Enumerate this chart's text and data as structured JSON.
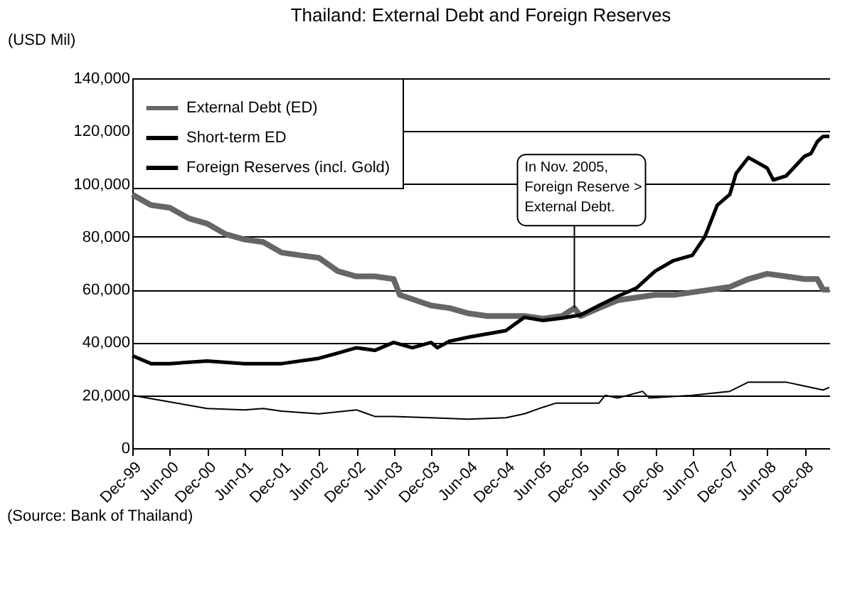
{
  "chart_data": {
    "type": "line",
    "title": "Thailand: External Debt and Foreign Reserves",
    "ylabel": "(USD Mil)",
    "series": [
      {
        "name": "External Debt (ED)",
        "color": "#666666",
        "x": [
          "1999-12",
          "2000-03",
          "2000-06",
          "2000-09",
          "2000-12",
          "2001-03",
          "2001-06",
          "2001-09",
          "2001-12",
          "2002-03",
          "2002-06",
          "2002-09",
          "2002-12",
          "2003-03",
          "2003-06",
          "2003-07",
          "2003-12",
          "2004-03",
          "2004-06",
          "2004-09",
          "2004-12",
          "2005-03",
          "2005-06",
          "2005-09",
          "2005-11",
          "2005-12",
          "2006-03",
          "2006-06",
          "2006-09",
          "2006-12",
          "2007-03",
          "2007-06",
          "2007-09",
          "2007-12",
          "2008-03",
          "2008-06",
          "2008-09",
          "2008-12",
          "2009-02",
          "2009-03",
          "2009-04"
        ],
        "values": [
          96000,
          92000,
          91000,
          87000,
          85000,
          81000,
          79000,
          78000,
          74000,
          73000,
          72000,
          67000,
          65000,
          65000,
          64000,
          58000,
          54000,
          53000,
          51000,
          50000,
          50000,
          50000,
          49000,
          50000,
          53000,
          50000,
          53000,
          56000,
          57000,
          58000,
          58000,
          59000,
          60000,
          61000,
          64000,
          66000,
          65000,
          64000,
          64000,
          60000,
          60000
        ]
      },
      {
        "name": "Short-term ED",
        "color": "#000000",
        "x": [
          "1999-12",
          "2000-06",
          "2000-12",
          "2001-06",
          "2001-09",
          "2001-12",
          "2002-06",
          "2002-12",
          "2003-03",
          "2003-06",
          "2003-12",
          "2004-06",
          "2004-12",
          "2005-03",
          "2005-06",
          "2005-08",
          "2005-12",
          "2006-03",
          "2006-04",
          "2006-06",
          "2006-10",
          "2006-11",
          "2007-06",
          "2007-12",
          "2008-03",
          "2008-06",
          "2008-09",
          "2008-12",
          "2009-03",
          "2009-04"
        ],
        "values": [
          20000,
          17500,
          15000,
          14500,
          15000,
          14000,
          13000,
          14500,
          12000,
          12000,
          11500,
          11000,
          11500,
          13000,
          15500,
          17000,
          17000,
          17000,
          20000,
          19000,
          21500,
          19000,
          20000,
          21500,
          25000,
          25000,
          25000,
          23500,
          22000,
          23000
        ]
      },
      {
        "name": "Foreign Reserves (incl. Gold)",
        "color": "#000000",
        "x": [
          "1999-12",
          "2000-03",
          "2000-06",
          "2000-12",
          "2001-06",
          "2001-12",
          "2002-06",
          "2002-09",
          "2002-12",
          "2003-03",
          "2003-06",
          "2003-09",
          "2003-12",
          "2004-01",
          "2004-03",
          "2004-06",
          "2004-12",
          "2005-03",
          "2005-06",
          "2005-09",
          "2005-12",
          "2006-03",
          "2006-06",
          "2006-09",
          "2006-12",
          "2007-03",
          "2007-06",
          "2007-08",
          "2007-10",
          "2007-12",
          "2008-01",
          "2008-03",
          "2008-06",
          "2008-07",
          "2008-09",
          "2008-12",
          "2009-01",
          "2009-02",
          "2009-03",
          "2009-04"
        ],
        "values": [
          35000,
          32000,
          32000,
          33000,
          32000,
          32000,
          34000,
          36000,
          38000,
          37000,
          40000,
          38000,
          40000,
          38000,
          40500,
          42000,
          44500,
          49500,
          48300,
          49200,
          50400,
          54000,
          57500,
          60600,
          67000,
          71000,
          73000,
          80000,
          92000,
          96000,
          104000,
          110000,
          106000,
          101500,
          103000,
          110500,
          111500,
          116000,
          118000,
          118000
        ]
      }
    ],
    "xlim": [
      "1999-12",
      "2009-04"
    ],
    "xticks": [
      {
        "value": "1999-12",
        "label": "Dec-99"
      },
      {
        "value": "2000-06",
        "label": "Jun-00"
      },
      {
        "value": "2000-12",
        "label": "Dec-00"
      },
      {
        "value": "2001-06",
        "label": "Jun-01"
      },
      {
        "value": "2001-12",
        "label": "Dec-01"
      },
      {
        "value": "2002-06",
        "label": "Jun-02"
      },
      {
        "value": "2002-12",
        "label": "Dec-02"
      },
      {
        "value": "2003-06",
        "label": "Jun-03"
      },
      {
        "value": "2003-12",
        "label": "Dec-03"
      },
      {
        "value": "2004-06",
        "label": "Jun-04"
      },
      {
        "value": "2004-12",
        "label": "Dec-04"
      },
      {
        "value": "2005-06",
        "label": "Jun-05"
      },
      {
        "value": "2005-12",
        "label": "Dec-05"
      },
      {
        "value": "2006-06",
        "label": "Jun-06"
      },
      {
        "value": "2006-12",
        "label": "Dec-06"
      },
      {
        "value": "2007-06",
        "label": "Jun-07"
      },
      {
        "value": "2007-12",
        "label": "Dec-07"
      },
      {
        "value": "2008-06",
        "label": "Jun-08"
      },
      {
        "value": "2008-12",
        "label": "Dec-08"
      }
    ],
    "ylim": [
      0,
      140000
    ],
    "yticks": [
      {
        "value": 0,
        "label": "0"
      },
      {
        "value": 20000,
        "label": "20,000"
      },
      {
        "value": 40000,
        "label": "40,000"
      },
      {
        "value": 60000,
        "label": "60,000"
      },
      {
        "value": 80000,
        "label": "80,000"
      },
      {
        "value": 100000,
        "label": "100,000"
      },
      {
        "value": 120000,
        "label": "120,000"
      },
      {
        "value": 140000,
        "label": "140,000"
      }
    ],
    "grid": "y",
    "legend": "top left",
    "line_style": "solid",
    "marker": "none",
    "annotations": [
      {
        "text": "In Nov. 2005,\nForeign Reserve >\nExternal Debt.",
        "x": "2005-11",
        "y": 53000
      },
      "(Source: Bank of Thailand)"
    ]
  }
}
